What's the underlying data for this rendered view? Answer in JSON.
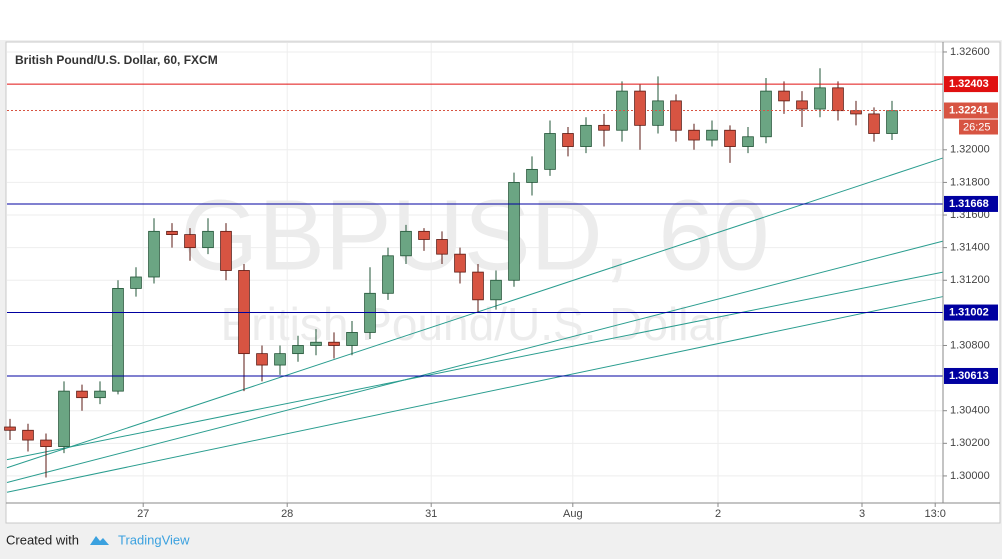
{
  "chart_data": {
    "type": "candlestick",
    "title": "British Pound/U.S. Dollar, 60, FXCM",
    "watermark": "GBPUSD, 60",
    "watermark_subtitle": "British Pound/U.S. Dollar",
    "x": [
      0,
      3,
      6,
      9,
      12,
      15,
      18,
      21,
      24,
      27,
      30,
      33,
      36,
      39,
      42,
      45,
      48,
      51,
      54,
      57,
      60,
      63,
      66,
      69,
      72,
      75,
      78,
      81,
      84,
      87,
      90,
      93,
      96,
      99,
      102,
      105,
      108,
      111,
      114,
      117,
      120,
      123,
      126,
      129,
      132,
      135,
      138,
      141,
      144,
      147
    ],
    "open": [
      1.303,
      1.3028,
      1.3022,
      1.3018,
      1.3052,
      1.3048,
      1.3052,
      1.3115,
      1.3122,
      1.315,
      1.3148,
      1.314,
      1.315,
      1.3126,
      1.3075,
      1.3068,
      1.3075,
      1.308,
      1.3082,
      1.308,
      1.3088,
      1.3112,
      1.3135,
      1.315,
      1.3145,
      1.3136,
      1.3125,
      1.3108,
      1.312,
      1.318,
      1.3188,
      1.321,
      1.3202,
      1.3215,
      1.3212,
      1.3236,
      1.3215,
      1.323,
      1.3212,
      1.3206,
      1.3212,
      1.3202,
      1.3208,
      1.3236,
      1.323,
      1.3225,
      1.3238,
      1.3224,
      1.3222,
      1.321
    ],
    "high": [
      1.3035,
      1.3032,
      1.3026,
      1.3058,
      1.3056,
      1.3058,
      1.312,
      1.3128,
      1.3158,
      1.3155,
      1.3152,
      1.3158,
      1.3155,
      1.313,
      1.308,
      1.308,
      1.3086,
      1.309,
      1.3088,
      1.3095,
      1.3128,
      1.314,
      1.3154,
      1.3152,
      1.315,
      1.314,
      1.313,
      1.3126,
      1.3186,
      1.3196,
      1.3218,
      1.3214,
      1.322,
      1.3222,
      1.3242,
      1.324,
      1.3245,
      1.3234,
      1.3216,
      1.3218,
      1.3215,
      1.3214,
      1.3244,
      1.3242,
      1.3236,
      1.325,
      1.3242,
      1.323,
      1.3226,
      1.323
    ],
    "low": [
      1.3022,
      1.3015,
      1.2999,
      1.3014,
      1.304,
      1.3044,
      1.305,
      1.311,
      1.3118,
      1.314,
      1.3132,
      1.3136,
      1.312,
      1.3052,
      1.3058,
      1.3062,
      1.307,
      1.3074,
      1.3072,
      1.3074,
      1.3084,
      1.3108,
      1.313,
      1.3138,
      1.313,
      1.3118,
      1.31,
      1.3102,
      1.3116,
      1.3172,
      1.3184,
      1.3196,
      1.3198,
      1.3202,
      1.3205,
      1.32,
      1.321,
      1.3205,
      1.32,
      1.3202,
      1.3192,
      1.3198,
      1.3204,
      1.3222,
      1.3214,
      1.322,
      1.3218,
      1.3215,
      1.3205,
      1.3206
    ],
    "close": [
      1.3028,
      1.3022,
      1.3018,
      1.3052,
      1.3048,
      1.3052,
      1.3115,
      1.3122,
      1.315,
      1.3148,
      1.314,
      1.315,
      1.3126,
      1.3075,
      1.3068,
      1.3075,
      1.308,
      1.3082,
      1.308,
      1.3088,
      1.3112,
      1.3135,
      1.315,
      1.3145,
      1.3136,
      1.3125,
      1.3108,
      1.312,
      1.318,
      1.3188,
      1.321,
      1.3202,
      1.3215,
      1.3212,
      1.3236,
      1.3215,
      1.323,
      1.3212,
      1.3206,
      1.3212,
      1.3202,
      1.3208,
      1.3236,
      1.323,
      1.3225,
      1.3238,
      1.3224,
      1.3222,
      1.321,
      1.3224
    ],
    "up_color": "#6ba583",
    "down_color": "#d75442",
    "xlim": [
      -0.5,
      155.5
    ],
    "ylim": [
      1.29834,
      1.32655
    ],
    "xticks": [
      {
        "value": 22.2,
        "label": "27"
      },
      {
        "value": 46.2,
        "label": "28"
      },
      {
        "value": 70.2,
        "label": "31"
      },
      {
        "value": 93.8,
        "label": "Aug"
      },
      {
        "value": 118,
        "label": "2"
      },
      {
        "value": 142,
        "label": "3"
      },
      {
        "value": 154.2,
        "label": "13:0"
      }
    ],
    "yticks": [
      {
        "value": 1.326,
        "label": "1.32600"
      },
      {
        "value": 1.32,
        "label": "1.32000"
      },
      {
        "value": 1.318,
        "label": "1.31800"
      },
      {
        "value": 1.316,
        "label": "1.31600"
      },
      {
        "value": 1.314,
        "label": "1.31400"
      },
      {
        "value": 1.312,
        "label": "1.31200"
      },
      {
        "value": 1.308,
        "label": "1.30800"
      },
      {
        "value": 1.304,
        "label": "1.30400"
      },
      {
        "value": 1.302,
        "label": "1.30200"
      },
      {
        "value": 1.3,
        "label": "1.30000"
      }
    ],
    "grid": true,
    "levels": [
      {
        "value": 1.32403,
        "color": "#e01010",
        "dashed": false
      },
      {
        "value": 1.32241,
        "color": "#d75442",
        "dashed": true,
        "countdown": "26:25"
      },
      {
        "value": 1.31668,
        "color": "#0000a0",
        "dashed": false
      },
      {
        "value": 1.31002,
        "color": "#0000a0",
        "dashed": false
      },
      {
        "value": 1.30613,
        "color": "#0000a0",
        "dashed": false
      }
    ],
    "trendlines": [
      {
        "x": [
          -0.5,
          155.5
        ],
        "y": [
          1.3005,
          1.3195
        ],
        "color": "#2a9d8f"
      },
      {
        "x": [
          -0.5,
          155.5
        ],
        "y": [
          1.2996,
          1.3144
        ],
        "color": "#2a9d8f"
      },
      {
        "x": [
          -0.5,
          155.5
        ],
        "y": [
          1.301,
          1.3125
        ],
        "color": "#2a9d8f"
      },
      {
        "x": [
          -0.5,
          155.5
        ],
        "y": [
          1.299,
          1.311
        ],
        "color": "#2a9d8f"
      }
    ]
  },
  "footer": {
    "created_with": "Created with",
    "brand": "TradingView"
  }
}
